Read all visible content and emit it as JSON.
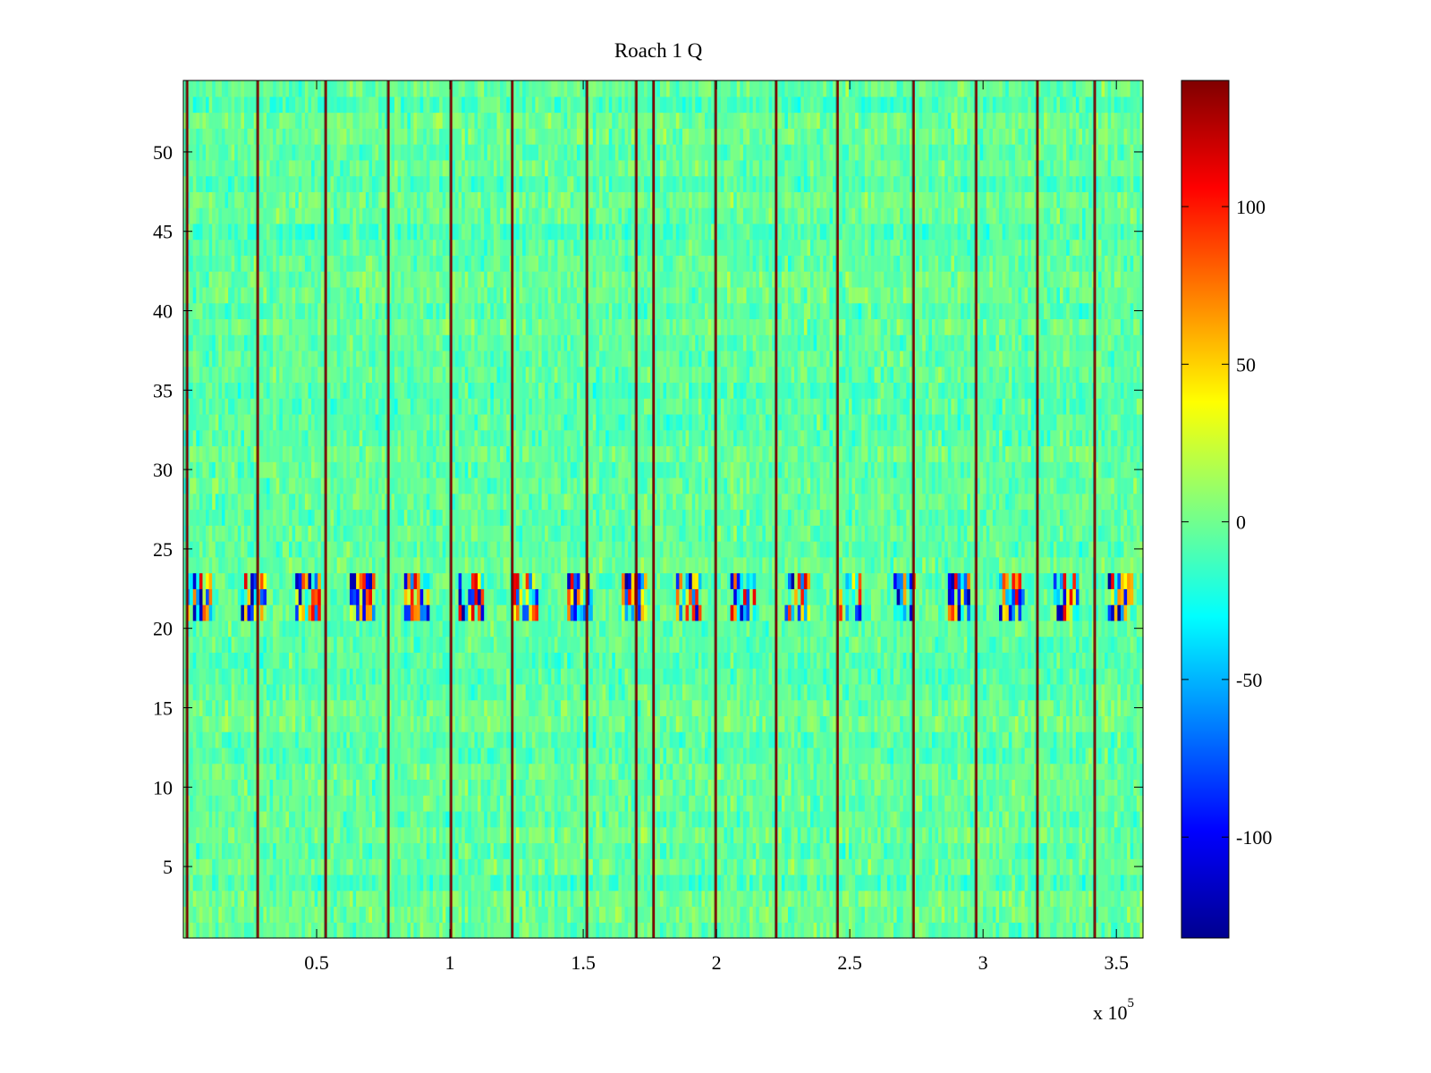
{
  "chart_data": {
    "type": "heatmap",
    "title": "Roach 1 Q",
    "xlabel": "",
    "ylabel": "",
    "x_exponent_label": {
      "base": "x 10",
      "exponent": "5"
    },
    "xlim": [
      0,
      360000
    ],
    "ylim": [
      0.5,
      54.5
    ],
    "x_ticks": [
      50000,
      100000,
      150000,
      200000,
      250000,
      300000,
      350000
    ],
    "x_tick_labels": [
      "0.5",
      "1",
      "1.5",
      "2",
      "2.5",
      "3",
      "3.5"
    ],
    "y_ticks": [
      5,
      10,
      15,
      20,
      25,
      30,
      35,
      40,
      45,
      50
    ],
    "y_tick_labels": [
      "5",
      "10",
      "15",
      "20",
      "25",
      "30",
      "35",
      "40",
      "45",
      "50"
    ],
    "rows": 54,
    "colormap": "jet",
    "clim": [
      -132,
      140
    ],
    "colorbar": {
      "placement": "right",
      "ticks": [
        -100,
        -50,
        0,
        50,
        100
      ],
      "tick_labels": [
        "-100",
        "-50",
        "0",
        "50",
        "100"
      ]
    },
    "baseline_value": -5,
    "noise_amplitude": 16,
    "spike_columns_x": [
      1500,
      28000,
      53500,
      77000,
      100500,
      123500,
      151500,
      170000,
      176500,
      199800,
      222500,
      245500,
      274000,
      297500,
      320500,
      342000
    ],
    "spike_value": 140,
    "high_variance_rows": [
      21,
      22,
      23
    ],
    "high_variance_amplitude": 120,
    "colors": {
      "axis": "#000000",
      "background": "#ffffff"
    }
  }
}
